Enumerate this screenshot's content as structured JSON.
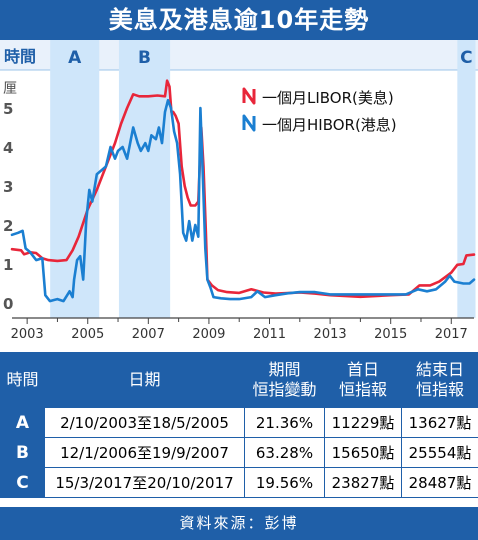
{
  "title": "美息及港息逾10年走勢",
  "chart_data": {
    "type": "line",
    "ylabel": "厘",
    "ylim": [
      0,
      5.7
    ],
    "yticks": [
      0,
      1,
      2,
      3,
      4,
      5
    ],
    "xlim": [
      2002.5,
      2017.75
    ],
    "xticks": [
      2003,
      2005,
      2007,
      2009,
      2011,
      2013,
      2015,
      2017
    ],
    "periods_label": "時間",
    "periods": [
      {
        "label": "A",
        "start": 2003.76,
        "end": 2005.38
      },
      {
        "label": "B",
        "start": 2006.03,
        "end": 2007.72
      },
      {
        "label": "C",
        "start": 2017.2,
        "end": 2017.8
      }
    ],
    "series": [
      {
        "name": "一個月LIBOR(美息)",
        "color": "#e8263a",
        "points": [
          [
            2002.5,
            1.38
          ],
          [
            2002.8,
            1.35
          ],
          [
            2002.9,
            1.25
          ],
          [
            2003.1,
            1.3
          ],
          [
            2003.3,
            1.28
          ],
          [
            2003.5,
            1.15
          ],
          [
            2003.7,
            1.1
          ],
          [
            2004.0,
            1.08
          ],
          [
            2004.3,
            1.1
          ],
          [
            2004.5,
            1.35
          ],
          [
            2004.7,
            1.7
          ],
          [
            2005.0,
            2.4
          ],
          [
            2005.3,
            2.9
          ],
          [
            2005.6,
            3.5
          ],
          [
            2005.9,
            4.1
          ],
          [
            2006.1,
            4.6
          ],
          [
            2006.3,
            5.0
          ],
          [
            2006.5,
            5.35
          ],
          [
            2006.7,
            5.3
          ],
          [
            2007.0,
            5.3
          ],
          [
            2007.3,
            5.32
          ],
          [
            2007.55,
            5.3
          ],
          [
            2007.62,
            5.7
          ],
          [
            2007.7,
            5.55
          ],
          [
            2007.76,
            4.9
          ],
          [
            2007.82,
            4.9
          ],
          [
            2007.9,
            4.8
          ],
          [
            2008.0,
            4.6
          ],
          [
            2008.1,
            3.5
          ],
          [
            2008.2,
            3.0
          ],
          [
            2008.3,
            2.7
          ],
          [
            2008.4,
            2.5
          ],
          [
            2008.55,
            2.5
          ],
          [
            2008.65,
            2.6
          ],
          [
            2008.75,
            4.5
          ],
          [
            2008.82,
            3.5
          ],
          [
            2008.9,
            1.8
          ],
          [
            2008.95,
            0.6
          ],
          [
            2009.1,
            0.45
          ],
          [
            2009.3,
            0.33
          ],
          [
            2009.6,
            0.28
          ],
          [
            2010.0,
            0.26
          ],
          [
            2010.4,
            0.35
          ],
          [
            2010.8,
            0.27
          ],
          [
            2011.2,
            0.24
          ],
          [
            2011.7,
            0.26
          ],
          [
            2012.0,
            0.27
          ],
          [
            2012.5,
            0.24
          ],
          [
            2013.0,
            0.2
          ],
          [
            2014.0,
            0.16
          ],
          [
            2015.0,
            0.2
          ],
          [
            2015.6,
            0.22
          ],
          [
            2015.95,
            0.45
          ],
          [
            2016.3,
            0.45
          ],
          [
            2016.6,
            0.55
          ],
          [
            2016.9,
            0.72
          ],
          [
            2017.0,
            0.78
          ],
          [
            2017.2,
            0.98
          ],
          [
            2017.4,
            1.0
          ],
          [
            2017.5,
            1.22
          ],
          [
            2017.75,
            1.24
          ]
        ]
      },
      {
        "name": "一個月HIBOR(港息)",
        "color": "#1b7fd1",
        "points": [
          [
            2002.5,
            1.75
          ],
          [
            2002.7,
            1.8
          ],
          [
            2002.85,
            1.85
          ],
          [
            2002.95,
            1.4
          ],
          [
            2003.1,
            1.3
          ],
          [
            2003.3,
            1.1
          ],
          [
            2003.5,
            1.15
          ],
          [
            2003.6,
            0.2
          ],
          [
            2003.75,
            0.05
          ],
          [
            2003.9,
            0.08
          ],
          [
            2004.0,
            0.1
          ],
          [
            2004.2,
            0.05
          ],
          [
            2004.4,
            0.3
          ],
          [
            2004.5,
            0.15
          ],
          [
            2004.55,
            0.6
          ],
          [
            2004.65,
            1.1
          ],
          [
            2004.75,
            1.2
          ],
          [
            2004.85,
            0.6
          ],
          [
            2004.95,
            2.1
          ],
          [
            2005.05,
            2.9
          ],
          [
            2005.15,
            2.6
          ],
          [
            2005.3,
            3.3
          ],
          [
            2005.45,
            3.4
          ],
          [
            2005.6,
            3.5
          ],
          [
            2005.75,
            4.0
          ],
          [
            2005.9,
            3.7
          ],
          [
            2006.0,
            3.9
          ],
          [
            2006.15,
            4.0
          ],
          [
            2006.3,
            3.7
          ],
          [
            2006.5,
            4.5
          ],
          [
            2006.65,
            4.1
          ],
          [
            2006.75,
            3.9
          ],
          [
            2006.9,
            4.1
          ],
          [
            2007.0,
            3.9
          ],
          [
            2007.1,
            4.3
          ],
          [
            2007.25,
            4.2
          ],
          [
            2007.35,
            4.5
          ],
          [
            2007.45,
            4.1
          ],
          [
            2007.55,
            4.9
          ],
          [
            2007.65,
            5.2
          ],
          [
            2007.75,
            5.0
          ],
          [
            2007.85,
            4.4
          ],
          [
            2007.95,
            4.1
          ],
          [
            2008.05,
            3.3
          ],
          [
            2008.15,
            1.8
          ],
          [
            2008.25,
            1.6
          ],
          [
            2008.35,
            2.1
          ],
          [
            2008.45,
            1.6
          ],
          [
            2008.55,
            2.0
          ],
          [
            2008.65,
            1.7
          ],
          [
            2008.72,
            5.0
          ],
          [
            2008.8,
            3.2
          ],
          [
            2008.88,
            1.4
          ],
          [
            2008.95,
            0.6
          ],
          [
            2009.05,
            0.4
          ],
          [
            2009.15,
            0.15
          ],
          [
            2009.4,
            0.12
          ],
          [
            2009.7,
            0.1
          ],
          [
            2010.0,
            0.1
          ],
          [
            2010.4,
            0.15
          ],
          [
            2010.6,
            0.3
          ],
          [
            2010.85,
            0.15
          ],
          [
            2011.2,
            0.2
          ],
          [
            2011.6,
            0.25
          ],
          [
            2012.0,
            0.28
          ],
          [
            2012.5,
            0.28
          ],
          [
            2013.0,
            0.22
          ],
          [
            2014.0,
            0.22
          ],
          [
            2015.0,
            0.22
          ],
          [
            2015.5,
            0.22
          ],
          [
            2015.9,
            0.35
          ],
          [
            2016.2,
            0.3
          ],
          [
            2016.5,
            0.35
          ],
          [
            2016.8,
            0.55
          ],
          [
            2016.95,
            0.7
          ],
          [
            2017.1,
            0.55
          ],
          [
            2017.4,
            0.5
          ],
          [
            2017.6,
            0.5
          ],
          [
            2017.75,
            0.6
          ]
        ]
      }
    ]
  },
  "table": {
    "headers": {
      "period": "時間",
      "date": "日期",
      "change_line1": "期間",
      "change_line2": "恒指變動",
      "first_line1": "首日",
      "first_line2": "恒指報",
      "last_line1": "結束日",
      "last_line2": "恒指報"
    },
    "rows": [
      {
        "label": "A",
        "date": "2/10/2003至18/5/2005",
        "change": "21.36%",
        "first": "11229點",
        "last": "13627點"
      },
      {
        "label": "B",
        "date": "12/1/2006至19/9/2007",
        "change": "63.28%",
        "first": "15650點",
        "last": "25554點"
      },
      {
        "label": "C",
        "date": "15/3/2017至20/10/2017",
        "change": "19.56%",
        "first": "23827點",
        "last": "28487點"
      }
    ]
  },
  "source": "資料來源：彭博"
}
